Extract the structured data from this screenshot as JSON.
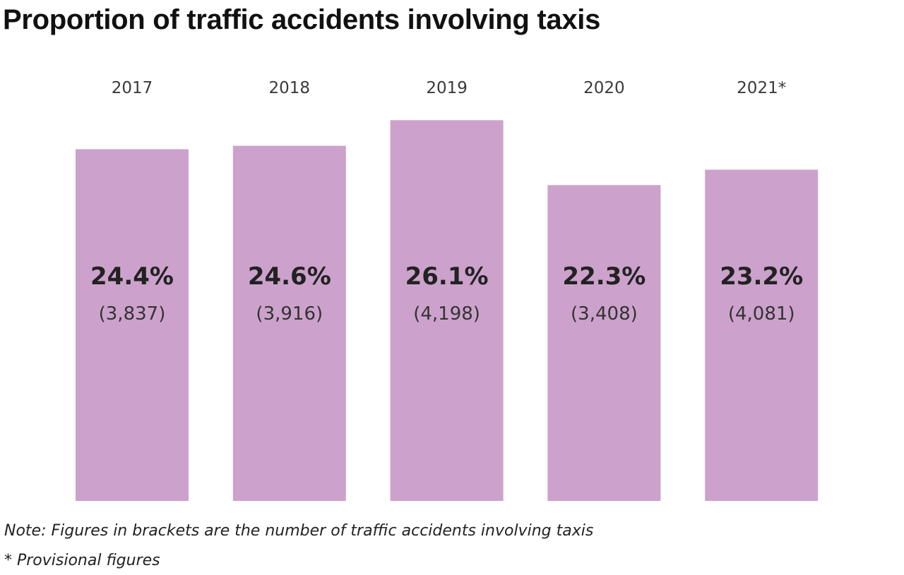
{
  "title": "Proportion of traffic accidents involving taxis",
  "notes": {
    "brackets": "Note: Figures in brackets are the number of traffic accidents involving taxis",
    "provisional": "* Provisional figures"
  },
  "colors": {
    "bar": "#cca2cc",
    "title": "#111111"
  },
  "chart_data": {
    "type": "bar",
    "title": "Proportion of traffic accidents involving taxis",
    "xlabel": "",
    "ylabel": "",
    "categories": [
      "2017",
      "2018",
      "2019",
      "2020",
      "2021*"
    ],
    "values": [
      24.4,
      24.6,
      26.1,
      22.3,
      23.2
    ],
    "value_labels": [
      "24.4%",
      "24.6%",
      "26.1%",
      "22.3%",
      "23.2%"
    ],
    "count_values": [
      3837,
      3916,
      4198,
      3408,
      4081
    ],
    "count_labels": [
      "(3,837)",
      "(3,916)",
      "(4,198)",
      "(3,408)",
      "(4,081)"
    ],
    "unit": "%",
    "grid": false,
    "legend": "none",
    "category_labels_position": "top"
  }
}
